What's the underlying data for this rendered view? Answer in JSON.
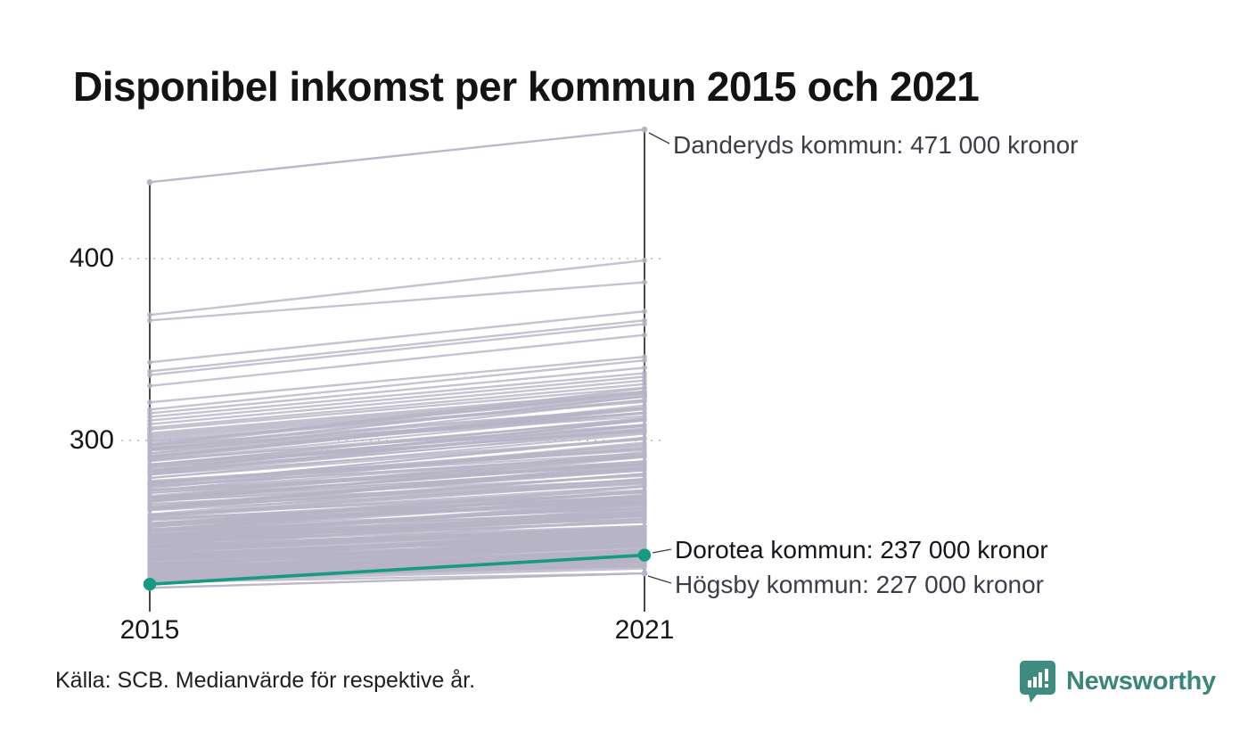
{
  "title": "Disponibel inkomst per kommun 2015 och 2021",
  "source_note": "Källa: SCB. Medianvärde för respektive år.",
  "branding": {
    "name": "Newsworthy",
    "color": "#3a867a",
    "icon": "bar-chart-speech-bubble-icon"
  },
  "colors": {
    "highlight_green": "#169a80",
    "line_gray": "rgba(183,180,198,0.8)",
    "line_gray_solid": "rgba(183,180,198,0.95)",
    "axis_black": "#1b1b1b",
    "grid_gray": "#cbcbcb",
    "connector_dark": "#3c3c3c"
  },
  "chart_data": {
    "type": "line",
    "variant": "slope-chart",
    "title": "Disponibel inkomst per kommun 2015 och 2021",
    "x_categories": [
      "2015",
      "2021"
    ],
    "y_ticks": [
      400,
      300
    ],
    "y_tick_labels": [
      "400",
      "300"
    ],
    "grid": "dotted-horizontal",
    "source": "Källa: SCB. Medianvärde för respektive år.",
    "highlighted_series": {
      "name": "Dorotea kommun",
      "color": "#169a80",
      "values": [
        221,
        237
      ],
      "label": "Dorotea kommun: 237 000 kronor"
    },
    "annotated_series": [
      {
        "name": "Danderyds kommun",
        "values": [
          442,
          471
        ],
        "label": "Danderyds kommun: 471 000 kronor"
      },
      {
        "name": "Högsby kommun",
        "values": [
          219,
          227
        ],
        "label": "Högsby kommun: 227 000 kronor"
      }
    ],
    "background_lines_distinct": [
      [
        369,
        399
      ],
      [
        366,
        387
      ],
      [
        343,
        371
      ],
      [
        338,
        366
      ],
      [
        336,
        364
      ],
      [
        330,
        358
      ],
      [
        321,
        346
      ],
      [
        317,
        344
      ],
      [
        315,
        340
      ],
      [
        313,
        337
      ],
      [
        311,
        335
      ],
      [
        309,
        333
      ],
      [
        307,
        331
      ],
      [
        306,
        329
      ],
      [
        304,
        327
      ],
      [
        303,
        326
      ],
      [
        302,
        325
      ],
      [
        301,
        324
      ],
      [
        300,
        322
      ]
    ],
    "background_band": {
      "count": 240,
      "v2015_min": 222,
      "v2015_max": 300,
      "increase_base": 10,
      "increase_per_unit": 0.2,
      "increase_jitter": 6,
      "density_exponent": 1.45,
      "description": "tät bunt av oetiketterade kommunlinjer mellan ca 222 och 318 tusen kronor"
    }
  }
}
